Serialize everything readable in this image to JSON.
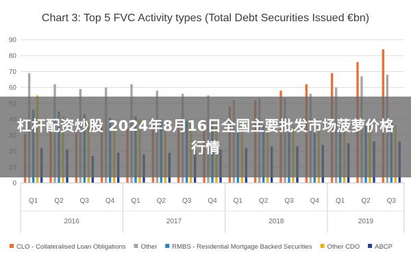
{
  "overlay": {
    "headline": "杠杆配资炒股 2024年8月16日全国主要批发市场菠萝价格行情"
  },
  "chart_data": {
    "type": "bar",
    "title": "Chart 3: Top 5 FVC Activity types (Total Debt Securities Issued €bn)",
    "quarters": [
      "Q1",
      "Q2",
      "Q3",
      "Q4",
      "Q1",
      "Q2",
      "Q3",
      "Q4",
      "Q1",
      "Q2",
      "Q3",
      "Q4",
      "Q1",
      "Q2",
      "Q3"
    ],
    "years": [
      {
        "label": "2016",
        "span": 4
      },
      {
        "label": "2017",
        "span": 4
      },
      {
        "label": "2018",
        "span": 4
      },
      {
        "label": "2019",
        "span": 3
      }
    ],
    "ylim": [
      0,
      90
    ],
    "yticks": [
      0,
      10,
      20,
      30,
      40,
      50,
      60,
      70,
      80,
      90
    ],
    "grid": true,
    "legend_position": "bottom",
    "series": [
      {
        "name": "CLO - Collateralised Loan Obligations",
        "color": "#e8703a",
        "values": [
          31,
          33,
          34,
          36,
          34,
          36,
          38,
          40,
          48,
          52,
          58,
          62,
          69,
          76,
          84
        ]
      },
      {
        "name": "Other",
        "color": "#a6a6a6",
        "values": [
          69,
          62,
          59,
          60,
          62,
          58,
          56,
          55,
          52,
          53,
          53,
          56,
          60,
          67,
          68
        ]
      },
      {
        "name": "RMBS - Residential Mortgage Backed Securities",
        "color": "#2e86c1",
        "values": [
          46,
          45,
          43,
          41,
          42,
          40,
          39,
          38,
          37,
          36,
          36,
          35,
          36,
          37,
          38
        ]
      },
      {
        "name": "Other CDO",
        "color": "#e6b422",
        "values": [
          55,
          42,
          38,
          40,
          40,
          39,
          38,
          38,
          38,
          37,
          36,
          36,
          35,
          35,
          36
        ]
      },
      {
        "name": "ABCP",
        "color": "#2a3f8f",
        "values": [
          22,
          21,
          17,
          19,
          18,
          19,
          20,
          21,
          22,
          23,
          23,
          24,
          25,
          26,
          26
        ]
      }
    ]
  }
}
